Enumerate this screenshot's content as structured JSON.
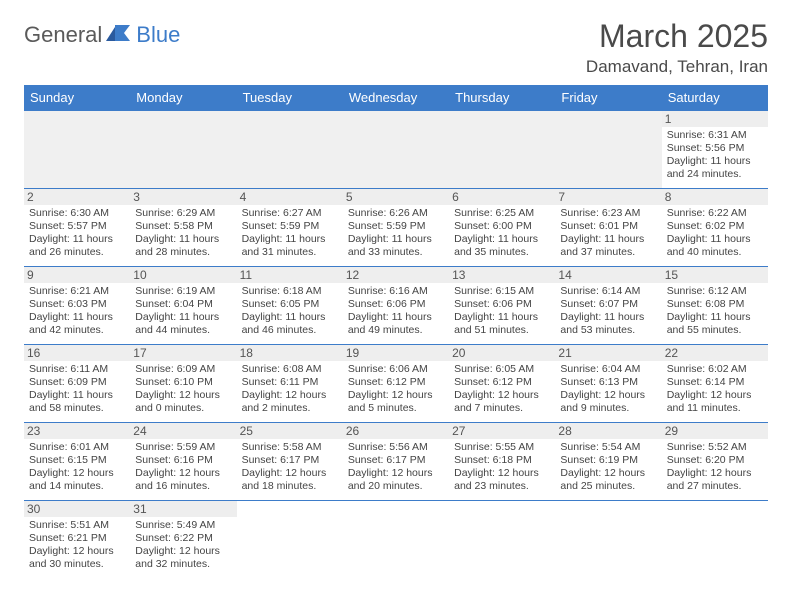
{
  "logo": {
    "part1": "General",
    "part2": "Blue"
  },
  "title": "March 2025",
  "location": "Damavand, Tehran, Iran",
  "colors": {
    "header_bg": "#3d7cc9",
    "header_fg": "#ffffff",
    "blank_bg": "#f0f0f0",
    "daynum_bg": "#eeeeee",
    "text": "#444444",
    "border": "#3d7cc9"
  },
  "day_headers": [
    "Sunday",
    "Monday",
    "Tuesday",
    "Wednesday",
    "Thursday",
    "Friday",
    "Saturday"
  ],
  "weeks": [
    [
      null,
      null,
      null,
      null,
      null,
      null,
      {
        "n": "1",
        "sr": "6:31 AM",
        "ss": "5:56 PM",
        "dl": "11 hours and 24 minutes."
      }
    ],
    [
      {
        "n": "2",
        "sr": "6:30 AM",
        "ss": "5:57 PM",
        "dl": "11 hours and 26 minutes."
      },
      {
        "n": "3",
        "sr": "6:29 AM",
        "ss": "5:58 PM",
        "dl": "11 hours and 28 minutes."
      },
      {
        "n": "4",
        "sr": "6:27 AM",
        "ss": "5:59 PM",
        "dl": "11 hours and 31 minutes."
      },
      {
        "n": "5",
        "sr": "6:26 AM",
        "ss": "5:59 PM",
        "dl": "11 hours and 33 minutes."
      },
      {
        "n": "6",
        "sr": "6:25 AM",
        "ss": "6:00 PM",
        "dl": "11 hours and 35 minutes."
      },
      {
        "n": "7",
        "sr": "6:23 AM",
        "ss": "6:01 PM",
        "dl": "11 hours and 37 minutes."
      },
      {
        "n": "8",
        "sr": "6:22 AM",
        "ss": "6:02 PM",
        "dl": "11 hours and 40 minutes."
      }
    ],
    [
      {
        "n": "9",
        "sr": "6:21 AM",
        "ss": "6:03 PM",
        "dl": "11 hours and 42 minutes."
      },
      {
        "n": "10",
        "sr": "6:19 AM",
        "ss": "6:04 PM",
        "dl": "11 hours and 44 minutes."
      },
      {
        "n": "11",
        "sr": "6:18 AM",
        "ss": "6:05 PM",
        "dl": "11 hours and 46 minutes."
      },
      {
        "n": "12",
        "sr": "6:16 AM",
        "ss": "6:06 PM",
        "dl": "11 hours and 49 minutes."
      },
      {
        "n": "13",
        "sr": "6:15 AM",
        "ss": "6:06 PM",
        "dl": "11 hours and 51 minutes."
      },
      {
        "n": "14",
        "sr": "6:14 AM",
        "ss": "6:07 PM",
        "dl": "11 hours and 53 minutes."
      },
      {
        "n": "15",
        "sr": "6:12 AM",
        "ss": "6:08 PM",
        "dl": "11 hours and 55 minutes."
      }
    ],
    [
      {
        "n": "16",
        "sr": "6:11 AM",
        "ss": "6:09 PM",
        "dl": "11 hours and 58 minutes."
      },
      {
        "n": "17",
        "sr": "6:09 AM",
        "ss": "6:10 PM",
        "dl": "12 hours and 0 minutes."
      },
      {
        "n": "18",
        "sr": "6:08 AM",
        "ss": "6:11 PM",
        "dl": "12 hours and 2 minutes."
      },
      {
        "n": "19",
        "sr": "6:06 AM",
        "ss": "6:12 PM",
        "dl": "12 hours and 5 minutes."
      },
      {
        "n": "20",
        "sr": "6:05 AM",
        "ss": "6:12 PM",
        "dl": "12 hours and 7 minutes."
      },
      {
        "n": "21",
        "sr": "6:04 AM",
        "ss": "6:13 PM",
        "dl": "12 hours and 9 minutes."
      },
      {
        "n": "22",
        "sr": "6:02 AM",
        "ss": "6:14 PM",
        "dl": "12 hours and 11 minutes."
      }
    ],
    [
      {
        "n": "23",
        "sr": "6:01 AM",
        "ss": "6:15 PM",
        "dl": "12 hours and 14 minutes."
      },
      {
        "n": "24",
        "sr": "5:59 AM",
        "ss": "6:16 PM",
        "dl": "12 hours and 16 minutes."
      },
      {
        "n": "25",
        "sr": "5:58 AM",
        "ss": "6:17 PM",
        "dl": "12 hours and 18 minutes."
      },
      {
        "n": "26",
        "sr": "5:56 AM",
        "ss": "6:17 PM",
        "dl": "12 hours and 20 minutes."
      },
      {
        "n": "27",
        "sr": "5:55 AM",
        "ss": "6:18 PM",
        "dl": "12 hours and 23 minutes."
      },
      {
        "n": "28",
        "sr": "5:54 AM",
        "ss": "6:19 PM",
        "dl": "12 hours and 25 minutes."
      },
      {
        "n": "29",
        "sr": "5:52 AM",
        "ss": "6:20 PM",
        "dl": "12 hours and 27 minutes."
      }
    ],
    [
      {
        "n": "30",
        "sr": "5:51 AM",
        "ss": "6:21 PM",
        "dl": "12 hours and 30 minutes."
      },
      {
        "n": "31",
        "sr": "5:49 AM",
        "ss": "6:22 PM",
        "dl": "12 hours and 32 minutes."
      },
      null,
      null,
      null,
      null,
      null
    ]
  ],
  "labels": {
    "sunrise": "Sunrise:",
    "sunset": "Sunset:",
    "daylight": "Daylight:"
  }
}
